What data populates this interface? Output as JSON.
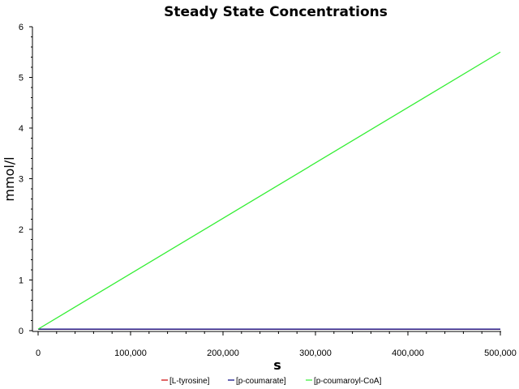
{
  "chart_data": {
    "type": "line",
    "title": "Steady State Concentrations",
    "xlabel": "s",
    "ylabel": "mmol/l",
    "xlim": [
      0,
      500000
    ],
    "ylim": [
      0,
      6
    ],
    "x_ticks": [
      0,
      100000,
      200000,
      300000,
      400000,
      500000
    ],
    "x_tick_labels": [
      "0",
      "100,000",
      "200,000",
      "300,000",
      "400,000",
      "500,000"
    ],
    "y_ticks": [
      0,
      1,
      2,
      3,
      4,
      5,
      6
    ],
    "y_tick_labels": [
      "0",
      "1",
      "2",
      "3",
      "4",
      "5",
      "6"
    ],
    "grid": false,
    "legend_position": "bottom",
    "series": [
      {
        "name": "[L-tyrosine]",
        "color": "#cc0000",
        "x": [
          0,
          500000
        ],
        "y": [
          0.03,
          0.03
        ]
      },
      {
        "name": "[p-coumarate]",
        "color": "#000080",
        "x": [
          0,
          500000
        ],
        "y": [
          0.03,
          0.03
        ]
      },
      {
        "name": "[p-coumaroyl-CoA]",
        "color": "#33ee33",
        "x": [
          0,
          500000
        ],
        "y": [
          0.03,
          5.5
        ]
      }
    ]
  }
}
